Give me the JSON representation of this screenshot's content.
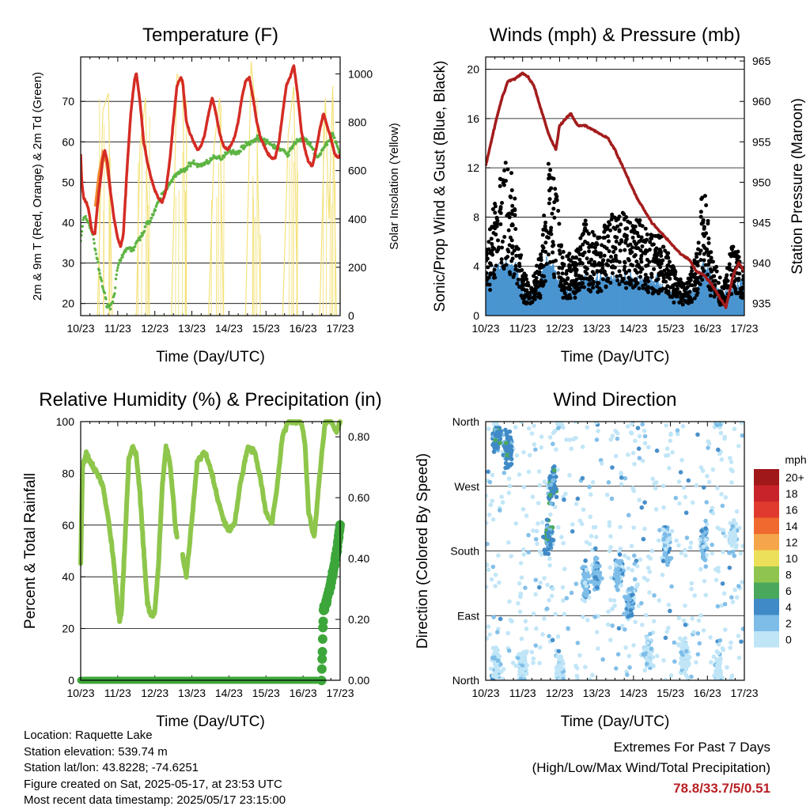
{
  "x_ticks": [
    "10/23",
    "11/23",
    "12/23",
    "13/23",
    "14/23",
    "15/23",
    "16/23",
    "17/23"
  ],
  "chart_data": [
    {
      "type": "line",
      "title": "Temperature (F)",
      "xlabel": "Time (Day/UTC)",
      "ylabel": "2m & 9m T (Red, Orange) & 2m Td (Green)",
      "ylabel_right": "Solar Insolation (Yellow)",
      "ylim": [
        17,
        81
      ],
      "yticks": [
        20,
        30,
        40,
        50,
        60,
        70
      ],
      "ylim_right": [
        0,
        1070
      ],
      "yticks_right": [
        0,
        200,
        400,
        600,
        800,
        1000
      ],
      "series": [
        {
          "id": "t2m",
          "color": "#d42c24",
          "x": [
            0,
            0.03,
            0.08,
            0.15,
            0.22,
            0.3,
            0.38,
            0.45,
            0.55,
            0.6,
            0.65,
            0.72,
            0.8,
            0.9,
            1.0,
            1.08,
            1.15,
            1.25,
            1.35,
            1.45,
            1.5,
            1.6,
            1.7,
            1.8,
            1.9,
            2.0,
            2.1,
            2.2,
            2.3,
            2.4,
            2.5,
            2.6,
            2.7,
            2.75,
            2.8,
            2.85,
            2.95,
            3.05,
            3.15,
            3.25,
            3.35,
            3.45,
            3.55,
            3.65,
            3.75,
            3.85,
            3.95,
            4.05,
            4.15,
            4.25,
            4.35,
            4.45,
            4.55,
            4.65,
            4.75,
            4.85,
            4.95,
            5.05,
            5.15,
            5.25,
            5.35,
            5.45,
            5.55,
            5.65,
            5.75,
            5.85,
            5.95,
            6.05,
            6.15,
            6.25,
            6.35,
            6.45,
            6.55,
            6.65,
            6.75,
            6.85,
            6.95,
            7.0
          ],
          "y": [
            57,
            50,
            46,
            45,
            43,
            38,
            37,
            44,
            52,
            56,
            58,
            55,
            48,
            41,
            36,
            34,
            37,
            53,
            67,
            75,
            77,
            70,
            60,
            55,
            51,
            48,
            46,
            45,
            48,
            55,
            65,
            74,
            76,
            75,
            70,
            65,
            62,
            60,
            58,
            59,
            62,
            67,
            71,
            67,
            62,
            59,
            58,
            59,
            61,
            65,
            71,
            75,
            76,
            71,
            65,
            61,
            59,
            57,
            56,
            56,
            60,
            67,
            74,
            76,
            79,
            72,
            63,
            58,
            55,
            54,
            58,
            63,
            67,
            64,
            61,
            57,
            56,
            57
          ]
        },
        {
          "id": "t9m",
          "color": "#f08a30",
          "x": [
            0.4,
            0.5,
            0.6,
            0.7,
            0.8
          ],
          "y": [
            44,
            52,
            57,
            55,
            48
          ]
        },
        {
          "id": "td2m",
          "color": "#5db443",
          "x": [
            0,
            0.1,
            0.2,
            0.3,
            0.4,
            0.5,
            0.6,
            0.7,
            0.8,
            0.9,
            1.0,
            1.1,
            1.2,
            1.3,
            1.4,
            1.5,
            1.6,
            1.7,
            1.8,
            1.9,
            2.0,
            2.1,
            2.2,
            2.3,
            2.4,
            2.6,
            2.8,
            3.0,
            3.2,
            3.4,
            3.6,
            3.8,
            4.0,
            4.2,
            4.4,
            4.6,
            4.8,
            5.0,
            5.2,
            5.4,
            5.6,
            5.8,
            6.0,
            6.2,
            6.4,
            6.6,
            6.8,
            7.0
          ],
          "y": [
            36,
            42,
            40,
            38,
            33,
            28,
            24,
            20,
            19,
            22,
            29,
            31,
            33,
            34,
            33,
            35,
            36,
            38,
            40,
            41,
            43,
            45,
            47,
            48,
            50,
            52,
            53,
            55,
            54,
            55,
            56,
            56,
            58,
            57,
            59,
            60,
            61,
            60,
            59,
            58,
            57,
            60,
            61,
            59,
            56,
            59,
            62,
            57
          ]
        },
        {
          "id": "solar",
          "axis": "right",
          "color": "#f4e27a",
          "x": [
            0.45,
            0.6,
            0.75,
            0.85,
            1.5,
            1.6,
            1.75,
            1.85,
            2.45,
            2.6,
            2.75,
            2.85,
            3.45,
            3.6,
            3.75,
            3.85,
            4.45,
            4.6,
            4.75,
            4.85,
            5.45,
            5.6,
            5.75,
            5.85,
            6.45,
            6.6,
            6.7,
            6.8,
            6.9
          ],
          "y": [
            0,
            850,
            920,
            0,
            0,
            700,
            900,
            0,
            0,
            1000,
            950,
            0,
            0,
            700,
            900,
            0,
            0,
            1050,
            800,
            0,
            0,
            750,
            950,
            0,
            0,
            900,
            400,
            950,
            0
          ]
        }
      ]
    },
    {
      "type": "scatter",
      "title": "Winds (mph) & Pressure (mb)",
      "xlabel": "Time (Day/UTC)",
      "ylabel": "Sonic/Prop Wind & Gust (Blue, Black)",
      "ylabel_right": "Station Pressure (Maroon)",
      "ylim": [
        0,
        21
      ],
      "yticks": [
        0,
        4,
        8,
        12,
        16,
        20
      ],
      "ylim_right": [
        933.5,
        965.5
      ],
      "yticks_right": [
        935,
        940,
        945,
        950,
        955,
        960,
        965
      ],
      "pressure": {
        "color": "#a31c1c",
        "x": [
          0,
          0.15,
          0.3,
          0.45,
          0.6,
          0.8,
          1.0,
          1.15,
          1.3,
          1.5,
          1.7,
          1.9,
          2.0,
          2.1,
          2.3,
          2.5,
          2.7,
          2.9,
          3.1,
          3.3,
          3.5,
          3.7,
          3.9,
          4.1,
          4.3,
          4.5,
          4.7,
          4.9,
          5.1,
          5.3,
          5.5,
          5.7,
          5.9,
          6.1,
          6.3,
          6.5,
          6.7,
          6.85,
          7.0
        ],
        "y": [
          952,
          955,
          958,
          960.5,
          962.5,
          962.8,
          963.5,
          963,
          962,
          959,
          956,
          954,
          957,
          957.5,
          958.5,
          957,
          957,
          956.5,
          956,
          955.5,
          954,
          952,
          950,
          948,
          946.5,
          945,
          944,
          943,
          942,
          941,
          940.5,
          939,
          938.5,
          937.5,
          936,
          934.5,
          938.5,
          940,
          939
        ]
      },
      "wind_color": "#4a95d0",
      "gust_color": "#000000",
      "wind_profile": {
        "x": [
          0,
          0.5,
          0.8,
          1.0,
          1.3,
          1.6,
          1.8,
          2.0,
          2.3,
          2.6,
          3.0,
          3.4,
          3.8,
          4.2,
          4.6,
          5.0,
          5.4,
          5.7,
          5.9,
          6.1,
          6.4,
          6.7,
          7.0
        ],
        "y": [
          2.5,
          3.5,
          3.5,
          1.5,
          1.0,
          3.5,
          3.8,
          2.0,
          1.5,
          2.5,
          2.5,
          2.5,
          2.5,
          2.3,
          2.2,
          1.2,
          1.0,
          1.5,
          3.5,
          2.5,
          1.2,
          2.0,
          2.0
        ]
      },
      "gust_profile": {
        "x": [
          0,
          0.3,
          0.6,
          0.8,
          1.0,
          1.2,
          1.5,
          1.7,
          1.9,
          2.1,
          2.4,
          2.7,
          3.0,
          3.3,
          3.6,
          3.9,
          4.2,
          4.5,
          4.8,
          5.1,
          5.4,
          5.7,
          5.9,
          6.1,
          6.4,
          6.7,
          7.0
        ],
        "y": [
          4,
          8,
          10,
          8,
          3,
          2,
          4,
          10,
          8,
          4,
          4,
          6,
          5,
          6,
          7,
          6,
          6,
          5,
          5,
          3,
          2,
          4,
          9,
          4,
          2,
          5,
          3
        ]
      }
    },
    {
      "type": "line",
      "title": "Relative Humidity (%) & Precipitation (in)",
      "xlabel": "Time (Day/UTC)",
      "ylabel": "Percent & Total Rainfall",
      "ylim": [
        0,
        100
      ],
      "yticks": [
        0,
        20,
        40,
        60,
        80,
        100
      ],
      "ylim_right": [
        0,
        0.85
      ],
      "yticks_right": [
        0.0,
        0.2,
        0.4,
        0.6,
        0.8
      ],
      "yticks_right_labels": [
        "0.00",
        "0.20",
        "0.40",
        "0.60",
        "0.80"
      ],
      "series": [
        {
          "id": "rh",
          "color": "#8ec64b",
          "x": [
            0,
            0.05,
            0.15,
            0.3,
            0.45,
            0.6,
            0.75,
            0.9,
            1.0,
            1.05,
            1.1,
            1.2,
            1.3,
            1.4,
            1.5,
            1.6,
            1.7,
            1.8,
            1.9,
            2.0,
            2.1,
            2.2,
            2.3,
            2.4,
            2.5,
            2.55,
            2.6
          ],
          "y": [
            45,
            82,
            88,
            83,
            80,
            75,
            62,
            45,
            28,
            23,
            26,
            55,
            86,
            90,
            87,
            72,
            50,
            30,
            25,
            26,
            45,
            75,
            90,
            85,
            70,
            60,
            55
          ]
        },
        {
          "id": "rh2",
          "color": "#8ec64b",
          "x": [
            2.75,
            2.85,
            3.0,
            3.15,
            3.35,
            3.5,
            3.7,
            3.85,
            4.0,
            4.15,
            4.3,
            4.5,
            4.7,
            4.85,
            5.0,
            5.15,
            5.3,
            5.45,
            5.6,
            5.8,
            5.95,
            6.05,
            6.15,
            6.3,
            6.45,
            6.6,
            6.75,
            6.9,
            7.0
          ],
          "y": [
            48,
            40,
            62,
            85,
            88,
            82,
            70,
            62,
            58,
            60,
            75,
            90,
            88,
            78,
            65,
            60,
            75,
            95,
            100,
            100,
            100,
            92,
            65,
            55,
            80,
            100,
            100,
            96,
            100
          ]
        },
        {
          "id": "precip",
          "axis": "right",
          "color": "#3da63a",
          "x": [
            0,
            6.5,
            6.55,
            6.65,
            6.75,
            6.85,
            6.95,
            7.0
          ],
          "y": [
            0,
            0,
            0.23,
            0.27,
            0.32,
            0.38,
            0.46,
            0.51
          ]
        }
      ]
    },
    {
      "type": "scatter",
      "title": "Wind Direction",
      "xlabel": "Time (Day/UTC)",
      "ylabel": "Direction (Colored By Speed)",
      "yticks_labels": [
        "North",
        "East",
        "South",
        "West",
        "North"
      ],
      "yticks_deg": [
        0,
        90,
        180,
        270,
        360
      ],
      "clusters": [
        {
          "x": 0.3,
          "y": 340,
          "speed": 4
        },
        {
          "x": 0.6,
          "y": 320,
          "speed": 4
        },
        {
          "x": 0.3,
          "y": 20,
          "speed": 0
        },
        {
          "x": 1.0,
          "y": 20,
          "speed": 0
        },
        {
          "x": 1.7,
          "y": 200,
          "speed": 4
        },
        {
          "x": 1.8,
          "y": 270,
          "speed": 4
        },
        {
          "x": 2.0,
          "y": 10,
          "speed": 0
        },
        {
          "x": 2.7,
          "y": 140,
          "speed": 2
        },
        {
          "x": 3.0,
          "y": 150,
          "speed": 2
        },
        {
          "x": 3.6,
          "y": 150,
          "speed": 2
        },
        {
          "x": 3.9,
          "y": 110,
          "speed": 2
        },
        {
          "x": 4.4,
          "y": 40,
          "speed": 0
        },
        {
          "x": 4.9,
          "y": 190,
          "speed": 2
        },
        {
          "x": 5.4,
          "y": 30,
          "speed": 0
        },
        {
          "x": 5.9,
          "y": 190,
          "speed": 2
        },
        {
          "x": 6.3,
          "y": 10,
          "speed": 0
        },
        {
          "x": 6.7,
          "y": 200,
          "speed": 0
        }
      ],
      "legend_title": "mph",
      "legend": [
        {
          "label": "20+",
          "color": "#a01818"
        },
        {
          "label": "18",
          "color": "#c8232a"
        },
        {
          "label": "16",
          "color": "#e03a2e"
        },
        {
          "label": "14",
          "color": "#f06a30"
        },
        {
          "label": "12",
          "color": "#f5a54a"
        },
        {
          "label": "10",
          "color": "#ece05a"
        },
        {
          "label": "8",
          "color": "#8fc54e"
        },
        {
          "label": "6",
          "color": "#4aa85c"
        },
        {
          "label": "4",
          "color": "#3f8ac7"
        },
        {
          "label": "2",
          "color": "#7dbde8"
        },
        {
          "label": "0",
          "color": "#bfe5f7"
        }
      ]
    }
  ],
  "info": {
    "location": "Location: Raquette Lake",
    "elevation": "Station elevation: 539.74 m",
    "latlon": "Station lat/lon: 43.8228; -74.6251",
    "created": "Figure created on Sat, 2025-05-17, at 23:53 UTC",
    "recent": "Most recent data timestamp: 2025/05/17 23:15:00"
  },
  "extremes": {
    "title": "Extremes For Past 7 Days",
    "subtitle": "(High/Low/Max Wind/Total Precipitation)",
    "value": "78.8/33.7/5/0.51"
  }
}
